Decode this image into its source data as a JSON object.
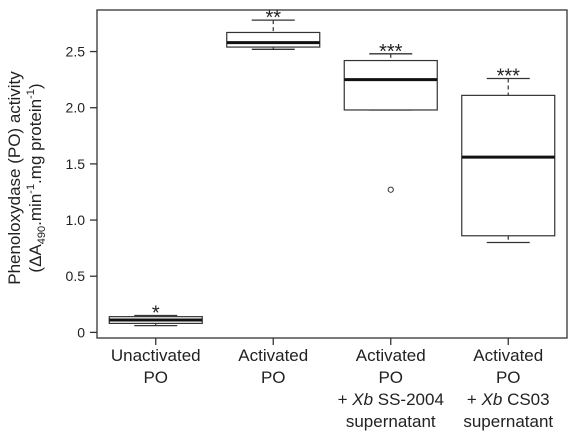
{
  "chart_data": {
    "type": "box",
    "ylabel_line1": "Phenoloxydase (PO) activity",
    "ylabel_line2": {
      "pre": "(ΔA",
      "sub1": "490",
      "mid1": ".min",
      "sup1": "-1",
      "mid2": ".mg protein",
      "sup2": "-1",
      "post": ")"
    },
    "ylim": [
      -0.05,
      2.87
    ],
    "yticks": [
      0,
      0.5,
      1.0,
      1.5,
      2.0,
      2.5
    ],
    "ytick_labels": [
      "0",
      "0.5",
      "1.0",
      "1.5",
      "2.0",
      "2.5"
    ],
    "grid": false,
    "categories": [
      {
        "lines": [
          "Unactivated",
          "PO"
        ]
      },
      {
        "lines": [
          "Activated",
          "PO"
        ]
      },
      {
        "lines": [
          "Activated",
          "PO",
          "+ Xb SS-2004",
          "supernatant"
        ],
        "italic_prefix": "Xb"
      },
      {
        "lines": [
          "Activated",
          "PO",
          "+ Xb CS03",
          "supernatant"
        ],
        "italic_prefix": "Xb"
      }
    ],
    "boxes": [
      {
        "min": 0.06,
        "q1": 0.08,
        "median": 0.11,
        "q3": 0.14,
        "max": 0.15,
        "outliers": [],
        "significance": "*"
      },
      {
        "min": 2.52,
        "q1": 2.54,
        "median": 2.58,
        "q3": 2.67,
        "max": 2.78,
        "outliers": [],
        "significance": "**"
      },
      {
        "min": 1.98,
        "q1": 1.98,
        "median": 2.25,
        "q3": 2.42,
        "max": 2.48,
        "outliers": [
          1.27
        ],
        "significance": "***"
      },
      {
        "min": 0.8,
        "q1": 0.86,
        "median": 1.56,
        "q3": 2.11,
        "max": 2.26,
        "outliers": [],
        "significance": "***"
      }
    ]
  }
}
